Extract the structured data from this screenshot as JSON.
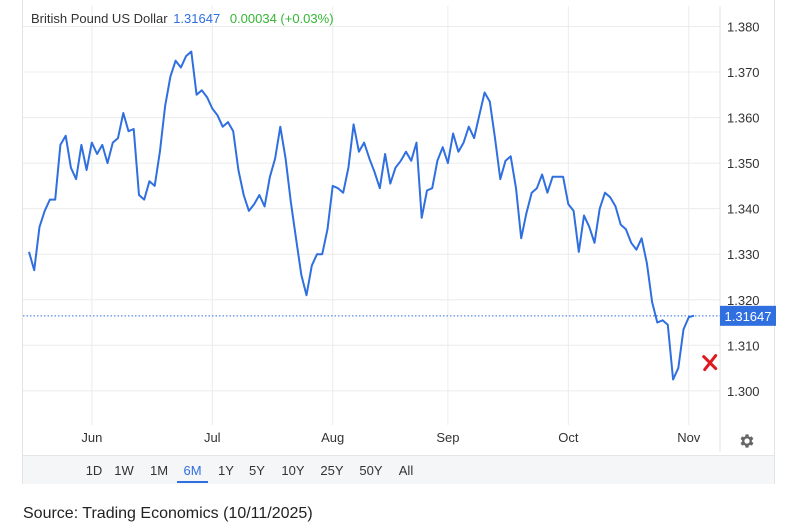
{
  "header": {
    "name": "British Pound US Dollar",
    "price": "1.31647",
    "change": "0.00034 (+0.03%)"
  },
  "range_buttons": [
    {
      "label": "1D",
      "active": false
    },
    {
      "label": "1W",
      "active": false
    },
    {
      "label": "1M",
      "active": false
    },
    {
      "label": "6M",
      "active": true
    },
    {
      "label": "1Y",
      "active": false
    },
    {
      "label": "5Y",
      "active": false
    },
    {
      "label": "10Y",
      "active": false
    },
    {
      "label": "25Y",
      "active": false
    },
    {
      "label": "50Y",
      "active": false
    },
    {
      "label": "All",
      "active": false
    }
  ],
  "source": "Source: Trading Economics (10/11/2025)",
  "icons": {
    "settings": "gear-icon",
    "marker": "red-x-marker"
  },
  "colors": {
    "line": "#2f6fdf",
    "up": "#35b535",
    "marker": "#e0181f",
    "grid": "#ececec"
  },
  "chart_data": {
    "type": "line",
    "title": "British Pound US Dollar",
    "xlabel": "",
    "ylabel": "",
    "grid": true,
    "y_axis_position": "right",
    "ylim": [
      1.2925,
      1.3845
    ],
    "y_ticks": [
      "1.300",
      "1.310",
      "1.320",
      "1.330",
      "1.340",
      "1.350",
      "1.360",
      "1.370",
      "1.380"
    ],
    "x_ticks": [
      {
        "label": "Jun",
        "index": 12
      },
      {
        "label": "Jul",
        "index": 35
      },
      {
        "label": "Aug",
        "index": 58
      },
      {
        "label": "Sep",
        "index": 80
      },
      {
        "label": "Oct",
        "index": 103
      },
      {
        "label": "Nov",
        "index": 126
      }
    ],
    "last_value_label": "1.31647",
    "reference_line_value": 1.31647,
    "marker": {
      "index": 130,
      "value": 1.3062
    },
    "series": [
      {
        "values": [
          1.3305,
          1.3265,
          1.336,
          1.3395,
          1.342,
          1.342,
          1.354,
          1.356,
          1.349,
          1.3465,
          1.354,
          1.3485,
          1.3545,
          1.352,
          1.354,
          1.35,
          1.3545,
          1.3555,
          1.361,
          1.357,
          1.3575,
          1.343,
          1.342,
          1.346,
          1.345,
          1.3525,
          1.3625,
          1.369,
          1.3725,
          1.371,
          1.3735,
          1.3745,
          1.365,
          1.366,
          1.3645,
          1.362,
          1.3605,
          1.358,
          1.359,
          1.357,
          1.3485,
          1.343,
          1.3395,
          1.341,
          1.343,
          1.3405,
          1.347,
          1.351,
          1.358,
          1.351,
          1.3415,
          1.3335,
          1.3255,
          1.321,
          1.3275,
          1.33,
          1.33,
          1.3355,
          1.345,
          1.3445,
          1.3435,
          1.349,
          1.3585,
          1.3525,
          1.3545,
          1.351,
          1.348,
          1.3445,
          1.352,
          1.3455,
          1.349,
          1.3505,
          1.3525,
          1.3505,
          1.3545,
          1.338,
          1.344,
          1.3445,
          1.3505,
          1.3535,
          1.35,
          1.3565,
          1.3525,
          1.3545,
          1.358,
          1.3555,
          1.3605,
          1.3655,
          1.3635,
          1.3555,
          1.3465,
          1.3505,
          1.3515,
          1.3445,
          1.3335,
          1.339,
          1.3435,
          1.3445,
          1.3475,
          1.3435,
          1.347,
          1.347,
          1.347,
          1.341,
          1.3395,
          1.3305,
          1.3385,
          1.336,
          1.3325,
          1.34,
          1.3435,
          1.3425,
          1.3405,
          1.3365,
          1.3355,
          1.3325,
          1.331,
          1.3335,
          1.328,
          1.3195,
          1.315,
          1.3155,
          1.3145,
          1.3025,
          1.305,
          1.3135,
          1.3162,
          1.3165
        ]
      }
    ]
  }
}
